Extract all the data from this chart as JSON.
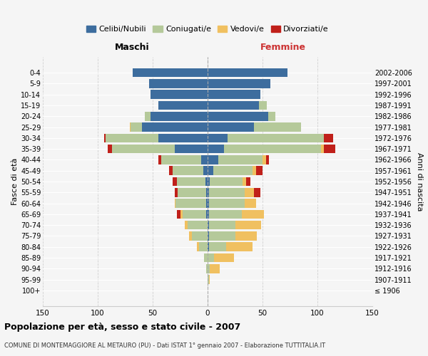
{
  "age_groups": [
    "100+",
    "95-99",
    "90-94",
    "85-89",
    "80-84",
    "75-79",
    "70-74",
    "65-69",
    "60-64",
    "55-59",
    "50-54",
    "45-49",
    "40-44",
    "35-39",
    "30-34",
    "25-29",
    "20-24",
    "15-19",
    "10-14",
    "5-9",
    "0-4"
  ],
  "birth_years": [
    "≤ 1906",
    "1907-1911",
    "1912-1916",
    "1917-1921",
    "1922-1926",
    "1927-1931",
    "1932-1936",
    "1937-1941",
    "1942-1946",
    "1947-1951",
    "1952-1956",
    "1957-1961",
    "1962-1966",
    "1967-1971",
    "1972-1976",
    "1977-1981",
    "1982-1986",
    "1987-1991",
    "1992-1996",
    "1997-2001",
    "2002-2006"
  ],
  "maschi": {
    "celibi": [
      0,
      0,
      0,
      0,
      0,
      0,
      0,
      1,
      1,
      1,
      2,
      4,
      6,
      30,
      45,
      60,
      52,
      45,
      52,
      53,
      68
    ],
    "coniugati": [
      0,
      0,
      1,
      3,
      8,
      14,
      18,
      22,
      28,
      26,
      26,
      28,
      36,
      57,
      48,
      10,
      5,
      0,
      0,
      0,
      0
    ],
    "vedovi": [
      0,
      0,
      0,
      0,
      2,
      3,
      3,
      2,
      1,
      0,
      0,
      0,
      0,
      0,
      0,
      1,
      0,
      0,
      0,
      0,
      0
    ],
    "divorziati": [
      0,
      0,
      0,
      0,
      0,
      0,
      0,
      3,
      0,
      3,
      4,
      3,
      3,
      4,
      1,
      0,
      0,
      0,
      0,
      0,
      0
    ]
  },
  "femmine": {
    "nubili": [
      0,
      0,
      0,
      0,
      1,
      1,
      1,
      1,
      1,
      1,
      2,
      5,
      10,
      15,
      18,
      42,
      55,
      47,
      48,
      57,
      73
    ],
    "coniugate": [
      0,
      1,
      2,
      6,
      16,
      24,
      24,
      30,
      33,
      33,
      30,
      36,
      40,
      88,
      88,
      43,
      7,
      7,
      0,
      0,
      0
    ],
    "vedove": [
      0,
      1,
      9,
      18,
      24,
      20,
      24,
      20,
      10,
      8,
      3,
      3,
      3,
      3,
      0,
      0,
      0,
      0,
      0,
      0,
      0
    ],
    "divorziate": [
      0,
      0,
      0,
      0,
      0,
      0,
      0,
      0,
      0,
      6,
      4,
      6,
      3,
      10,
      8,
      0,
      0,
      0,
      0,
      0,
      0
    ]
  },
  "colors": {
    "celibi": "#3d6d9e",
    "coniugati": "#b5c99a",
    "vedovi": "#f0c060",
    "divorziati": "#c0201a"
  },
  "title": "Popolazione per età, sesso e stato civile - 2007",
  "subtitle": "COMUNE DI MONTEMAGGIORE AL METAURO (PU) - Dati ISTAT 1° gennaio 2007 - Elaborazione TUTTITALIA.IT",
  "xlabel_left": "Maschi",
  "xlabel_right": "Femmine",
  "ylabel": "Fasce di età",
  "ylabel_right": "Anni di nascita",
  "xlim": 150,
  "bg_color": "#f5f5f5",
  "grid_color": "#cccccc"
}
